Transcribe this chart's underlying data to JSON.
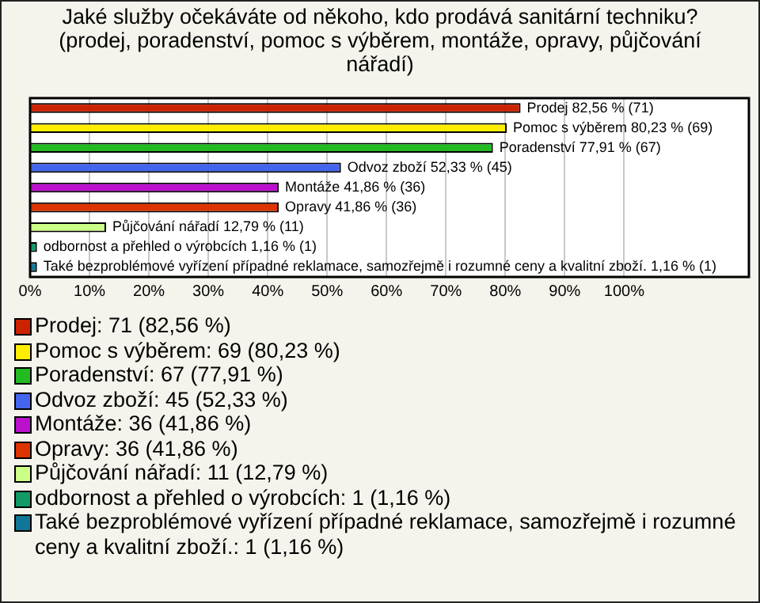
{
  "chart_data": {
    "type": "bar",
    "orientation": "horizontal",
    "title": "Jaké služby očekáváte od někoho, kdo prodává sanitární techniku? (prodej, poradenství, pomoc s výběrem, montáže, opravy, půjčování nářadí)",
    "categories": [
      "Prodej",
      "Pomoc s výběrem",
      "Poradenství",
      "Odvoz zboží",
      "Montáže",
      "Opravy",
      "Půjčování nářadí",
      "odbornost a přehled o výrobcích",
      "Také bezproblémové vyřízení případné reklamace, samozřejmě i rozumné ceny a kvalitní zboží."
    ],
    "values": [
      82.56,
      80.23,
      77.91,
      52.33,
      41.86,
      41.86,
      12.79,
      1.16,
      1.16
    ],
    "colors": [
      "#cc2200",
      "#ffee00",
      "#22bb22",
      "#4466ee",
      "#bb11cc",
      "#dd3300",
      "#ccff88",
      "#119966",
      "#117799"
    ],
    "value_labels": [
      "82,56 % (71)",
      "80,23 % (69)",
      "77,91 % (67)",
      "52,33 % (45)",
      "41,86 % (36)",
      "41,86 % (36)",
      "12,79 % (11)",
      "1,16 % (1)",
      "1,16 % (1)"
    ],
    "xlim": [
      0,
      121
    ],
    "xticks": [
      {
        "value": 0,
        "label": "0%"
      },
      {
        "value": 10,
        "label": "10%"
      },
      {
        "value": 20,
        "label": "20%"
      },
      {
        "value": 30,
        "label": "30%"
      },
      {
        "value": 40,
        "label": "40%"
      },
      {
        "value": 50,
        "label": "50%"
      },
      {
        "value": 60,
        "label": "60%"
      },
      {
        "value": 70,
        "label": "70%"
      },
      {
        "value": 80,
        "label": "80%"
      },
      {
        "value": 90,
        "label": "90%"
      },
      {
        "value": 100,
        "label": "100%"
      }
    ],
    "tick_labels": "x",
    "grid": "x",
    "annotations": [
      "Prodej: 71 (82,56 %)",
      "Pomoc s výběrem: 69 (80,23 %)",
      "Poradenství: 67 (77,91 %)",
      "Odvoz zboží: 45 (52,33 %)",
      "Montáže: 36 (41,86 %)",
      "Opravy: 36 (41,86 %)",
      "Půjčování nářadí: 11 (12,79 %)",
      "odbornost a přehled o výrobcích: 1 (1,16 %)",
      "Také bezproblémové vyřízení případné reklamace, samozřejmě i rozumné ceny a kvalitní zboží.: 1 (1,16 %)"
    ]
  }
}
